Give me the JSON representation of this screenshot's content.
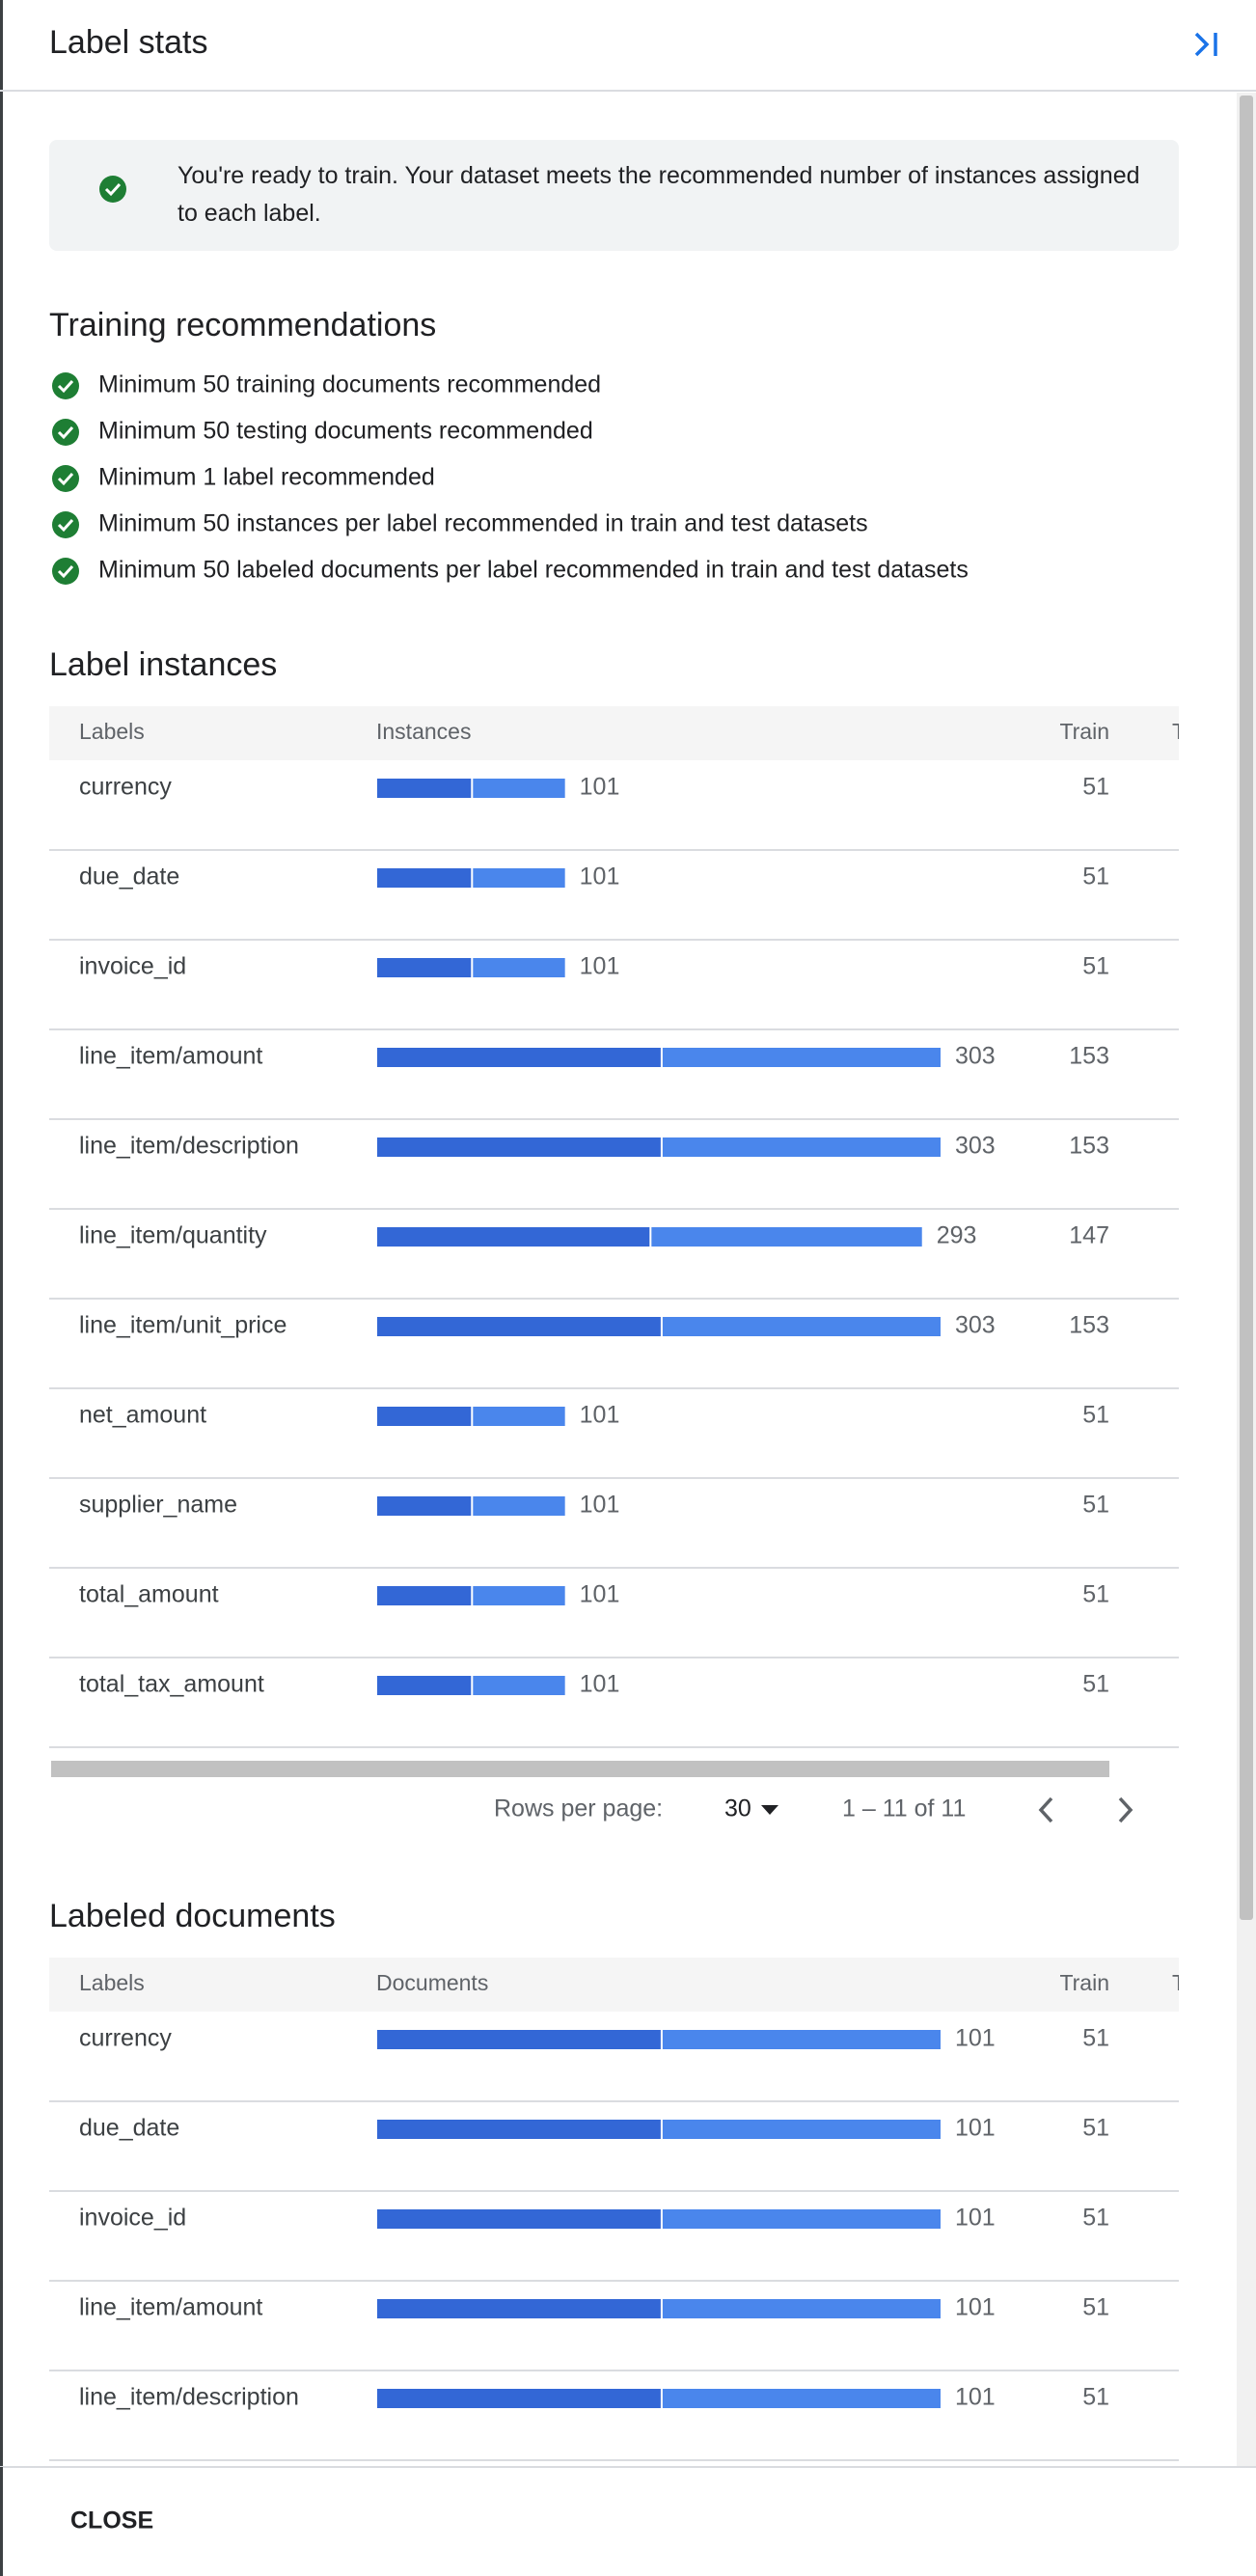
{
  "header": {
    "title": "Label stats"
  },
  "banner": {
    "text": "You're ready to train. Your dataset meets the recommended number of instances assigned to each label."
  },
  "recommendations": {
    "title": "Training recommendations",
    "items": [
      "Minimum 50 training documents recommended",
      "Minimum 50 testing documents recommended",
      "Minimum 1 label recommended",
      "Minimum 50 instances per label recommended in train and test datasets",
      "Minimum 50 labeled documents per label recommended in train and test datasets"
    ]
  },
  "label_instances": {
    "title": "Label instances",
    "columns": [
      "Labels",
      "Instances",
      "Train",
      "T"
    ],
    "rows": [
      {
        "label": "currency",
        "total": 101,
        "train": 51
      },
      {
        "label": "due_date",
        "total": 101,
        "train": 51
      },
      {
        "label": "invoice_id",
        "total": 101,
        "train": 51
      },
      {
        "label": "line_item/amount",
        "total": 303,
        "train": 153
      },
      {
        "label": "line_item/description",
        "total": 303,
        "train": 153
      },
      {
        "label": "line_item/quantity",
        "total": 293,
        "train": 147
      },
      {
        "label": "line_item/unit_price",
        "total": 303,
        "train": 153
      },
      {
        "label": "net_amount",
        "total": 101,
        "train": 51
      },
      {
        "label": "supplier_name",
        "total": 101,
        "train": 51
      },
      {
        "label": "total_amount",
        "total": 101,
        "train": 51
      },
      {
        "label": "total_tax_amount",
        "total": 101,
        "train": 51
      }
    ]
  },
  "pagination": {
    "rows_per_page_label": "Rows per page:",
    "rows_per_page": 30,
    "range": "1 – 11 of 11"
  },
  "labeled_documents": {
    "title": "Labeled documents",
    "columns": [
      "Labels",
      "Documents",
      "Train",
      "T"
    ],
    "rows": [
      {
        "label": "currency",
        "total": 101,
        "train": 51
      },
      {
        "label": "due_date",
        "total": 101,
        "train": 51
      },
      {
        "label": "invoice_id",
        "total": 101,
        "train": 51
      },
      {
        "label": "line_item/amount",
        "total": 101,
        "train": 51
      },
      {
        "label": "line_item/description",
        "total": 101,
        "train": 51
      }
    ]
  },
  "footer": {
    "close": "CLOSE"
  }
}
